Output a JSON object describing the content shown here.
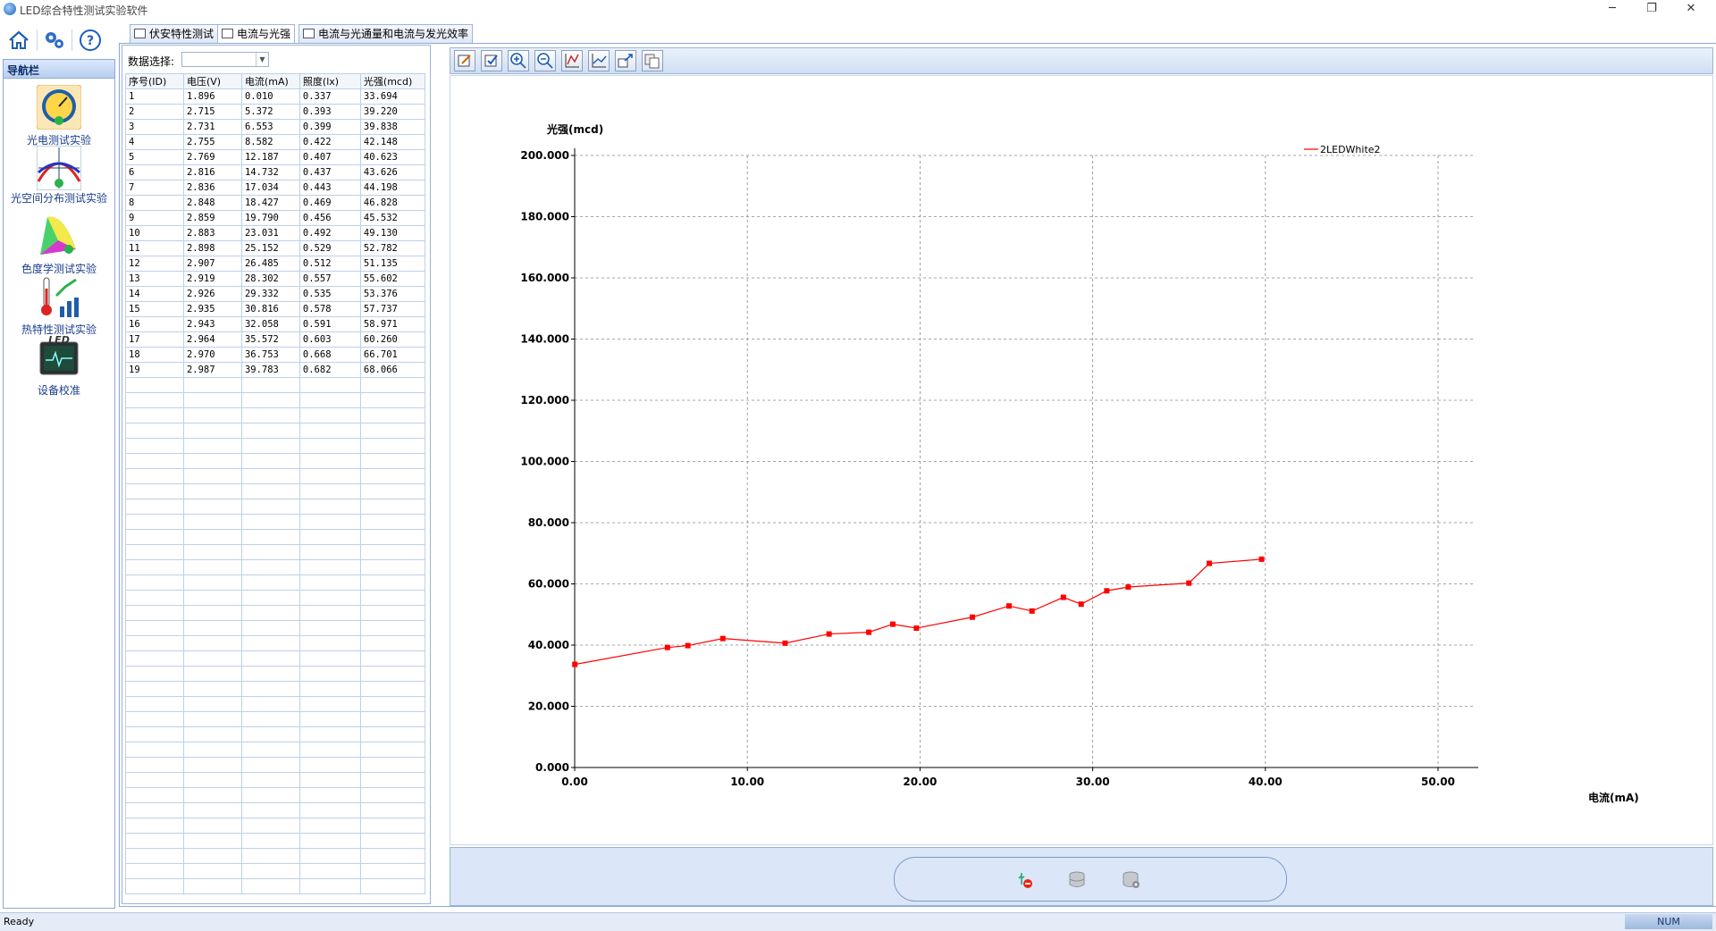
{
  "window": {
    "title": "LED综合特性测试实验软件"
  },
  "nav": {
    "header": "导航栏",
    "items": [
      {
        "label": "光电测试实验"
      },
      {
        "label": "光空间分布测试实验"
      },
      {
        "label": "色度学测试实验"
      },
      {
        "label": "热特性测试实验"
      },
      {
        "label": "设备校准"
      }
    ]
  },
  "tabs": [
    {
      "label": "伏安特性测试"
    },
    {
      "label": "电流与光强"
    },
    {
      "label": "电流与光通量和电流与发光效率"
    }
  ],
  "data_select": {
    "label": "数据选择:",
    "value": ""
  },
  "table": {
    "columns": [
      "序号(ID)",
      "电压(V)",
      "电流(mA)",
      "照度(lx)",
      "光强(mcd)"
    ],
    "rows": [
      [
        "1",
        "1.896",
        "0.010",
        "0.337",
        "33.694"
      ],
      [
        "2",
        "2.715",
        "5.372",
        "0.393",
        "39.220"
      ],
      [
        "3",
        "2.731",
        "6.553",
        "0.399",
        "39.838"
      ],
      [
        "4",
        "2.755",
        "8.582",
        "0.422",
        "42.148"
      ],
      [
        "5",
        "2.769",
        "12.187",
        "0.407",
        "40.623"
      ],
      [
        "6",
        "2.816",
        "14.732",
        "0.437",
        "43.626"
      ],
      [
        "7",
        "2.836",
        "17.034",
        "0.443",
        "44.198"
      ],
      [
        "8",
        "2.848",
        "18.427",
        "0.469",
        "46.828"
      ],
      [
        "9",
        "2.859",
        "19.790",
        "0.456",
        "45.532"
      ],
      [
        "10",
        "2.883",
        "23.031",
        "0.492",
        "49.130"
      ],
      [
        "11",
        "2.898",
        "25.152",
        "0.529",
        "52.782"
      ],
      [
        "12",
        "2.907",
        "26.485",
        "0.512",
        "51.135"
      ],
      [
        "13",
        "2.919",
        "28.302",
        "0.557",
        "55.602"
      ],
      [
        "14",
        "2.926",
        "29.332",
        "0.535",
        "53.376"
      ],
      [
        "15",
        "2.935",
        "30.816",
        "0.578",
        "57.737"
      ],
      [
        "16",
        "2.943",
        "32.058",
        "0.591",
        "58.971"
      ],
      [
        "17",
        "2.964",
        "35.572",
        "0.603",
        "60.260"
      ],
      [
        "18",
        "2.970",
        "36.753",
        "0.668",
        "66.701"
      ],
      [
        "19",
        "2.987",
        "39.783",
        "0.682",
        "68.066"
      ]
    ]
  },
  "chart_toolbar": {
    "icons": [
      "edit-icon",
      "select-icon",
      "zoom-in-icon",
      "zoom-out-icon",
      "axis-scale-icon",
      "series-icon",
      "export-icon",
      "copy-icon"
    ]
  },
  "bottom_toolbar": {
    "icons": [
      "usb-disconnect-icon",
      "database-icon",
      "database-settings-icon"
    ]
  },
  "chart_data": {
    "type": "line",
    "title": "",
    "xlabel": "电流(mA)",
    "ylabel": "光强(mcd)",
    "xlim": [
      0,
      50
    ],
    "ylim": [
      0,
      200
    ],
    "xticks": [
      "0.00",
      "10.00",
      "20.00",
      "30.00",
      "40.00",
      "50.00"
    ],
    "yticks": [
      "0.000",
      "20.000",
      "40.000",
      "60.000",
      "80.000",
      "100.000",
      "120.000",
      "140.000",
      "160.000",
      "180.000",
      "200.000"
    ],
    "grid": true,
    "legend_position": "top-right",
    "series": [
      {
        "name": "2LEDWhite2",
        "color": "#ff0000",
        "x": [
          0.01,
          5.372,
          6.553,
          8.582,
          12.187,
          14.732,
          17.034,
          18.427,
          19.79,
          23.031,
          25.152,
          26.485,
          28.302,
          29.332,
          30.816,
          32.058,
          35.572,
          36.753,
          39.783
        ],
        "y": [
          33.694,
          39.22,
          39.838,
          42.148,
          40.623,
          43.626,
          44.198,
          46.828,
          45.532,
          49.13,
          52.782,
          51.135,
          55.602,
          53.376,
          57.737,
          58.971,
          60.26,
          66.701,
          68.066
        ]
      }
    ]
  },
  "status": {
    "text": "Ready",
    "num": "NUM"
  }
}
